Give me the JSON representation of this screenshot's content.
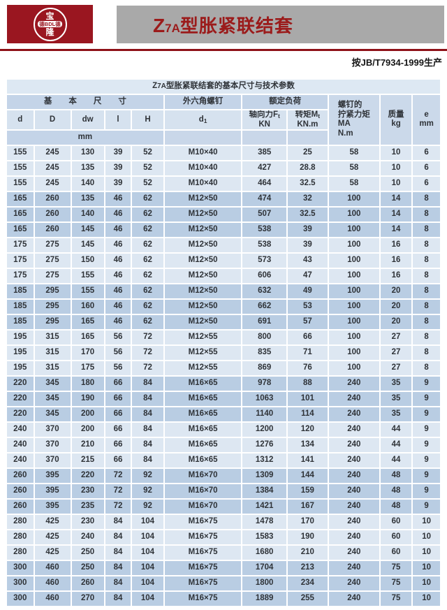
{
  "logo": {
    "top": "宝",
    "middle": "德BDL德",
    "bottom": "隆"
  },
  "title": {
    "prefix": "Z",
    "model_sub": "7A",
    "suffix": "型胀紧联结套"
  },
  "standard_note": "按JB/T7934-1999生产",
  "colors": {
    "brand_red": "#9a1620",
    "title_red": "#9b1b1b",
    "bar_gray": "#a9a9a9",
    "rule_red": "#8e1118",
    "caption_bg": "#dde8f3",
    "header_dark_bg": "#c4d4e8",
    "header_light_bg": "#d6e2ef",
    "row_light_bg": "#dde7f2",
    "row_dark_bg": "#b9cde3"
  },
  "table": {
    "caption": {
      "prefix": "Z",
      "model_sub": "7A",
      "suffix": "型胀紧联结套的基本尺寸与技术参数"
    },
    "header": {
      "basic_dims": "基本尺寸",
      "hex_screw": "外六角螺钉",
      "rated_load": "额定负荷",
      "col_d": "d",
      "col_D": "D",
      "col_dw": "dw",
      "col_l": "l",
      "col_H": "H",
      "col_d1_base": "d",
      "col_d1_sub": "1",
      "axial_line1": "轴向力F",
      "axial_sub": "t",
      "axial_line2": "KN",
      "torque_line1": "转矩M",
      "torque_sub": "t",
      "torque_line2": "KN.m",
      "tightening_lines": [
        "螺钉的",
        "拧紧力矩",
        "MA",
        "N.m"
      ],
      "mass_lines": [
        "质量",
        "kg"
      ],
      "e_lines": [
        "e",
        "mm"
      ],
      "unit_mm": "mm"
    },
    "columns": [
      "d",
      "D",
      "dw",
      "l",
      "H",
      "d1",
      "axial-force",
      "torque",
      "tightening-torque",
      "mass",
      "e"
    ],
    "rows": [
      [
        "155",
        "245",
        "130",
        "39",
        "52",
        "M10×40",
        "385",
        "25",
        "58",
        "10",
        "6"
      ],
      [
        "155",
        "245",
        "135",
        "39",
        "52",
        "M10×40",
        "427",
        "28.8",
        "58",
        "10",
        "6"
      ],
      [
        "155",
        "245",
        "140",
        "39",
        "52",
        "M10×40",
        "464",
        "32.5",
        "58",
        "10",
        "6"
      ],
      [
        "165",
        "260",
        "135",
        "46",
        "62",
        "M12×50",
        "474",
        "32",
        "100",
        "14",
        "8"
      ],
      [
        "165",
        "260",
        "140",
        "46",
        "62",
        "M12×50",
        "507",
        "32.5",
        "100",
        "14",
        "8"
      ],
      [
        "165",
        "260",
        "145",
        "46",
        "62",
        "M12×50",
        "538",
        "39",
        "100",
        "14",
        "8"
      ],
      [
        "175",
        "275",
        "145",
        "46",
        "62",
        "M12×50",
        "538",
        "39",
        "100",
        "16",
        "8"
      ],
      [
        "175",
        "275",
        "150",
        "46",
        "62",
        "M12×50",
        "573",
        "43",
        "100",
        "16",
        "8"
      ],
      [
        "175",
        "275",
        "155",
        "46",
        "62",
        "M12×50",
        "606",
        "47",
        "100",
        "16",
        "8"
      ],
      [
        "185",
        "295",
        "155",
        "46",
        "62",
        "M12×50",
        "632",
        "49",
        "100",
        "20",
        "8"
      ],
      [
        "185",
        "295",
        "160",
        "46",
        "62",
        "M12×50",
        "662",
        "53",
        "100",
        "20",
        "8"
      ],
      [
        "185",
        "295",
        "165",
        "46",
        "62",
        "M12×50",
        "691",
        "57",
        "100",
        "20",
        "8"
      ],
      [
        "195",
        "315",
        "165",
        "56",
        "72",
        "M12×55",
        "800",
        "66",
        "100",
        "27",
        "8"
      ],
      [
        "195",
        "315",
        "170",
        "56",
        "72",
        "M12×55",
        "835",
        "71",
        "100",
        "27",
        "8"
      ],
      [
        "195",
        "315",
        "175",
        "56",
        "72",
        "M12×55",
        "869",
        "76",
        "100",
        "27",
        "8"
      ],
      [
        "220",
        "345",
        "180",
        "66",
        "84",
        "M16×65",
        "978",
        "88",
        "240",
        "35",
        "9"
      ],
      [
        "220",
        "345",
        "190",
        "66",
        "84",
        "M16×65",
        "1063",
        "101",
        "240",
        "35",
        "9"
      ],
      [
        "220",
        "345",
        "200",
        "66",
        "84",
        "M16×65",
        "1140",
        "114",
        "240",
        "35",
        "9"
      ],
      [
        "240",
        "370",
        "200",
        "66",
        "84",
        "M16×65",
        "1200",
        "120",
        "240",
        "44",
        "9"
      ],
      [
        "240",
        "370",
        "210",
        "66",
        "84",
        "M16×65",
        "1276",
        "134",
        "240",
        "44",
        "9"
      ],
      [
        "240",
        "370",
        "215",
        "66",
        "84",
        "M16×65",
        "1312",
        "141",
        "240",
        "44",
        "9"
      ],
      [
        "260",
        "395",
        "220",
        "72",
        "92",
        "M16×70",
        "1309",
        "144",
        "240",
        "48",
        "9"
      ],
      [
        "260",
        "395",
        "230",
        "72",
        "92",
        "M16×70",
        "1384",
        "159",
        "240",
        "48",
        "9"
      ],
      [
        "260",
        "395",
        "235",
        "72",
        "92",
        "M16×70",
        "1421",
        "167",
        "240",
        "48",
        "9"
      ],
      [
        "280",
        "425",
        "230",
        "84",
        "104",
        "M16×75",
        "1478",
        "170",
        "240",
        "60",
        "10"
      ],
      [
        "280",
        "425",
        "240",
        "84",
        "104",
        "M16×75",
        "1583",
        "190",
        "240",
        "60",
        "10"
      ],
      [
        "280",
        "425",
        "250",
        "84",
        "104",
        "M16×75",
        "1680",
        "210",
        "240",
        "60",
        "10"
      ],
      [
        "300",
        "460",
        "250",
        "84",
        "104",
        "M16×75",
        "1704",
        "213",
        "240",
        "75",
        "10"
      ],
      [
        "300",
        "460",
        "260",
        "84",
        "104",
        "M16×75",
        "1800",
        "234",
        "240",
        "75",
        "10"
      ],
      [
        "300",
        "460",
        "270",
        "84",
        "104",
        "M16×75",
        "1889",
        "255",
        "240",
        "75",
        "10"
      ]
    ]
  }
}
